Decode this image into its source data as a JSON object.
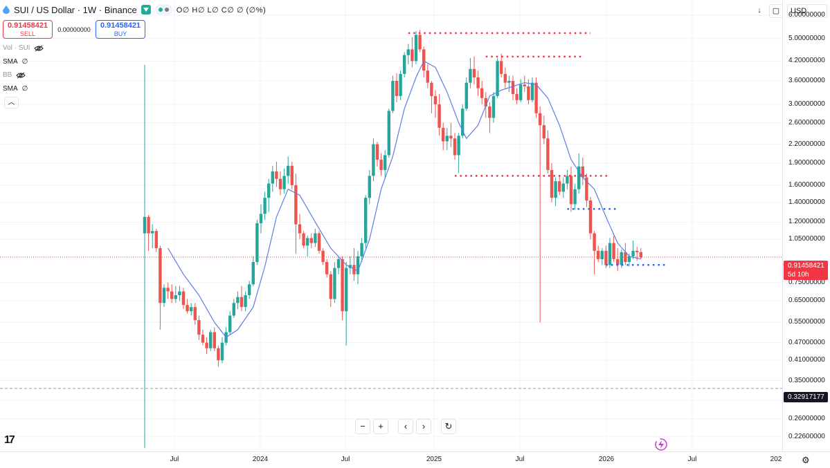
{
  "header": {
    "title": "SUI / US Dollar · 1W · Binance",
    "ohlc": "O∅ H∅ L∅ C∅ ∅ (∅%)"
  },
  "trade": {
    "sell_price": "0.91458421",
    "sell_label": "SELL",
    "spread": "0.00000000",
    "buy_price": "0.91458421",
    "buy_label": "BUY"
  },
  "indicators": [
    {
      "name": "Vol · SUI",
      "value": ""
    },
    {
      "name": "SMA",
      "value": "∅"
    },
    {
      "name": "BB",
      "value": ""
    },
    {
      "name": "SMA",
      "value": "∅"
    }
  ],
  "toolbar": {
    "currency": "USD",
    "arrow_icon": "down-arrow-icon",
    "select_icon": "square-select-icon"
  },
  "price_scale": {
    "labels": [
      "6.00000000",
      "5.00000000",
      "4.20000000",
      "3.60000000",
      "3.00000000",
      "2.60000000",
      "2.20000000",
      "1.90000000",
      "1.60000000",
      "1.40000000",
      "1.20000000",
      "1.05000000",
      "0.75000000",
      "0.65000000",
      "0.55000000",
      "0.47000000",
      "0.41000000",
      "0.35000000",
      "0.30000000",
      "0.26000000",
      "0.22600000"
    ],
    "current_price": "0.91458421",
    "countdown": "5d 10h",
    "crosshair_price": "0.32917177"
  },
  "time_axis": {
    "labels": [
      "Jul",
      "2024",
      "Jul",
      "2025",
      "Jul",
      "2026",
      "Jul",
      "202"
    ]
  },
  "nav": {
    "zoom_out": "−",
    "zoom_in": "+",
    "scroll_left": "‹",
    "scroll_right": "›",
    "reset": "↻"
  },
  "logo": "17",
  "colors": {
    "up": "#26a69a",
    "down": "#ef5350",
    "sma": "#5b7ce8",
    "sell": "#f23645",
    "buy": "#2962ff",
    "resistance": "#f23645",
    "support": "#2962ff"
  },
  "chart_data": {
    "type": "candlestick",
    "scale": "log",
    "ylim": [
      0.205,
      6.4
    ],
    "x_axis": [
      "Jul",
      "2024",
      "Jul",
      "2025",
      "Jul",
      "2026",
      "Jul",
      "202"
    ],
    "current_price": 0.91458421,
    "crosshair_price": 0.32917177,
    "weeks": [
      {
        "o": 1.1,
        "h": 4.08,
        "l": 0.207,
        "c": 1.25
      },
      {
        "o": 1.25,
        "h": 1.27,
        "l": 0.96,
        "c": 1.1
      },
      {
        "o": 1.1,
        "h": 1.18,
        "l": 0.98,
        "c": 1.12
      },
      {
        "o": 1.12,
        "h": 1.14,
        "l": 0.95,
        "c": 0.98
      },
      {
        "o": 0.98,
        "h": 1.0,
        "l": 0.52,
        "c": 0.64
      },
      {
        "o": 0.64,
        "h": 0.74,
        "l": 0.62,
        "c": 0.72
      },
      {
        "o": 0.72,
        "h": 0.75,
        "l": 0.66,
        "c": 0.7
      },
      {
        "o": 0.7,
        "h": 0.74,
        "l": 0.64,
        "c": 0.66
      },
      {
        "o": 0.66,
        "h": 0.73,
        "l": 0.64,
        "c": 0.68
      },
      {
        "o": 0.68,
        "h": 0.73,
        "l": 0.65,
        "c": 0.7
      },
      {
        "o": 0.7,
        "h": 0.72,
        "l": 0.61,
        "c": 0.63
      },
      {
        "o": 0.63,
        "h": 0.66,
        "l": 0.59,
        "c": 0.6
      },
      {
        "o": 0.6,
        "h": 0.64,
        "l": 0.58,
        "c": 0.62
      },
      {
        "o": 0.62,
        "h": 0.64,
        "l": 0.54,
        "c": 0.56
      },
      {
        "o": 0.56,
        "h": 0.58,
        "l": 0.48,
        "c": 0.5
      },
      {
        "o": 0.5,
        "h": 0.52,
        "l": 0.46,
        "c": 0.47
      },
      {
        "o": 0.47,
        "h": 0.49,
        "l": 0.43,
        "c": 0.45
      },
      {
        "o": 0.45,
        "h": 0.52,
        "l": 0.44,
        "c": 0.51
      },
      {
        "o": 0.51,
        "h": 0.53,
        "l": 0.44,
        "c": 0.45
      },
      {
        "o": 0.45,
        "h": 0.46,
        "l": 0.39,
        "c": 0.41
      },
      {
        "o": 0.41,
        "h": 0.49,
        "l": 0.4,
        "c": 0.47
      },
      {
        "o": 0.47,
        "h": 0.53,
        "l": 0.46,
        "c": 0.51
      },
      {
        "o": 0.51,
        "h": 0.6,
        "l": 0.5,
        "c": 0.58
      },
      {
        "o": 0.58,
        "h": 0.66,
        "l": 0.57,
        "c": 0.64
      },
      {
        "o": 0.64,
        "h": 0.7,
        "l": 0.61,
        "c": 0.67
      },
      {
        "o": 0.67,
        "h": 0.73,
        "l": 0.6,
        "c": 0.62
      },
      {
        "o": 0.62,
        "h": 0.7,
        "l": 0.6,
        "c": 0.68
      },
      {
        "o": 0.68,
        "h": 0.76,
        "l": 0.66,
        "c": 0.74
      },
      {
        "o": 0.74,
        "h": 0.92,
        "l": 0.73,
        "c": 0.88
      },
      {
        "o": 0.88,
        "h": 1.22,
        "l": 0.86,
        "c": 1.19
      },
      {
        "o": 1.19,
        "h": 1.38,
        "l": 1.1,
        "c": 1.28
      },
      {
        "o": 1.28,
        "h": 1.52,
        "l": 1.22,
        "c": 1.45
      },
      {
        "o": 1.45,
        "h": 1.68,
        "l": 1.3,
        "c": 1.62
      },
      {
        "o": 1.62,
        "h": 1.86,
        "l": 1.52,
        "c": 1.78
      },
      {
        "o": 1.78,
        "h": 1.92,
        "l": 1.58,
        "c": 1.68
      },
      {
        "o": 1.68,
        "h": 1.78,
        "l": 1.48,
        "c": 1.55
      },
      {
        "o": 1.55,
        "h": 1.82,
        "l": 1.5,
        "c": 1.72
      },
      {
        "o": 1.72,
        "h": 2.0,
        "l": 1.62,
        "c": 1.86
      },
      {
        "o": 1.86,
        "h": 1.92,
        "l": 1.55,
        "c": 1.6
      },
      {
        "o": 1.6,
        "h": 1.75,
        "l": 0.94,
        "c": 1.18
      },
      {
        "o": 1.18,
        "h": 1.28,
        "l": 1.05,
        "c": 1.1
      },
      {
        "o": 1.1,
        "h": 1.12,
        "l": 0.98,
        "c": 1.0
      },
      {
        "o": 1.0,
        "h": 1.08,
        "l": 0.92,
        "c": 1.06
      },
      {
        "o": 1.06,
        "h": 1.1,
        "l": 0.98,
        "c": 1.02
      },
      {
        "o": 1.02,
        "h": 1.14,
        "l": 0.99,
        "c": 1.1
      },
      {
        "o": 1.1,
        "h": 1.12,
        "l": 0.94,
        "c": 0.96
      },
      {
        "o": 0.96,
        "h": 0.98,
        "l": 0.86,
        "c": 0.88
      },
      {
        "o": 0.88,
        "h": 0.9,
        "l": 0.78,
        "c": 0.8
      },
      {
        "o": 0.8,
        "h": 0.82,
        "l": 0.62,
        "c": 0.66
      },
      {
        "o": 0.66,
        "h": 0.88,
        "l": 0.64,
        "c": 0.84
      },
      {
        "o": 0.84,
        "h": 0.92,
        "l": 0.8,
        "c": 0.9
      },
      {
        "o": 0.9,
        "h": 0.92,
        "l": 0.56,
        "c": 0.6
      },
      {
        "o": 0.6,
        "h": 0.88,
        "l": 0.46,
        "c": 0.84
      },
      {
        "o": 0.84,
        "h": 0.92,
        "l": 0.8,
        "c": 0.86
      },
      {
        "o": 0.86,
        "h": 0.98,
        "l": 0.76,
        "c": 0.8
      },
      {
        "o": 0.8,
        "h": 0.96,
        "l": 0.74,
        "c": 0.92
      },
      {
        "o": 0.92,
        "h": 1.06,
        "l": 0.88,
        "c": 1.02
      },
      {
        "o": 1.02,
        "h": 1.48,
        "l": 0.98,
        "c": 1.45
      },
      {
        "o": 1.45,
        "h": 1.8,
        "l": 1.38,
        "c": 1.72
      },
      {
        "o": 1.72,
        "h": 2.3,
        "l": 1.65,
        "c": 2.2
      },
      {
        "o": 2.2,
        "h": 2.24,
        "l": 1.85,
        "c": 1.95
      },
      {
        "o": 1.95,
        "h": 2.05,
        "l": 1.72,
        "c": 1.8
      },
      {
        "o": 1.8,
        "h": 2.1,
        "l": 1.7,
        "c": 2.02
      },
      {
        "o": 2.02,
        "h": 2.9,
        "l": 1.98,
        "c": 2.85
      },
      {
        "o": 2.85,
        "h": 3.75,
        "l": 2.8,
        "c": 3.6
      },
      {
        "o": 3.6,
        "h": 3.82,
        "l": 3.05,
        "c": 3.2
      },
      {
        "o": 3.2,
        "h": 3.9,
        "l": 3.1,
        "c": 3.8
      },
      {
        "o": 3.8,
        "h": 4.5,
        "l": 3.7,
        "c": 4.4
      },
      {
        "o": 4.4,
        "h": 4.8,
        "l": 4.1,
        "c": 4.6
      },
      {
        "o": 4.6,
        "h": 5.05,
        "l": 4.0,
        "c": 4.2
      },
      {
        "o": 4.2,
        "h": 5.3,
        "l": 4.1,
        "c": 5.15
      },
      {
        "o": 5.15,
        "h": 5.35,
        "l": 4.5,
        "c": 4.6
      },
      {
        "o": 4.6,
        "h": 4.7,
        "l": 3.7,
        "c": 3.9
      },
      {
        "o": 3.9,
        "h": 4.1,
        "l": 3.4,
        "c": 3.55
      },
      {
        "o": 3.55,
        "h": 3.6,
        "l": 2.8,
        "c": 3.2
      },
      {
        "o": 3.2,
        "h": 3.35,
        "l": 2.7,
        "c": 3.0
      },
      {
        "o": 3.0,
        "h": 3.25,
        "l": 2.35,
        "c": 2.5
      },
      {
        "o": 2.5,
        "h": 2.6,
        "l": 2.1,
        "c": 2.25
      },
      {
        "o": 2.25,
        "h": 2.5,
        "l": 2.1,
        "c": 2.35
      },
      {
        "o": 2.35,
        "h": 2.6,
        "l": 2.15,
        "c": 2.3
      },
      {
        "o": 2.3,
        "h": 2.4,
        "l": 1.95,
        "c": 2.02
      },
      {
        "o": 2.02,
        "h": 2.4,
        "l": 1.76,
        "c": 2.35
      },
      {
        "o": 2.35,
        "h": 3.0,
        "l": 2.3,
        "c": 2.9
      },
      {
        "o": 2.9,
        "h": 3.7,
        "l": 2.85,
        "c": 3.55
      },
      {
        "o": 3.55,
        "h": 4.3,
        "l": 3.4,
        "c": 3.95
      },
      {
        "o": 3.95,
        "h": 4.35,
        "l": 3.5,
        "c": 3.7
      },
      {
        "o": 3.7,
        "h": 3.9,
        "l": 3.2,
        "c": 3.4
      },
      {
        "o": 3.4,
        "h": 3.6,
        "l": 3.0,
        "c": 3.15
      },
      {
        "o": 3.15,
        "h": 3.3,
        "l": 2.7,
        "c": 2.95
      },
      {
        "o": 2.95,
        "h": 3.05,
        "l": 2.4,
        "c": 2.7
      },
      {
        "o": 2.7,
        "h": 3.3,
        "l": 2.6,
        "c": 3.2
      },
      {
        "o": 3.2,
        "h": 4.3,
        "l": 3.15,
        "c": 4.2
      },
      {
        "o": 4.2,
        "h": 4.45,
        "l": 3.7,
        "c": 3.8
      },
      {
        "o": 3.8,
        "h": 4.0,
        "l": 3.4,
        "c": 3.55
      },
      {
        "o": 3.55,
        "h": 3.75,
        "l": 3.3,
        "c": 3.6
      },
      {
        "o": 3.6,
        "h": 3.75,
        "l": 3.1,
        "c": 3.25
      },
      {
        "o": 3.25,
        "h": 3.4,
        "l": 3.0,
        "c": 3.1
      },
      {
        "o": 3.1,
        "h": 3.65,
        "l": 3.05,
        "c": 3.5
      },
      {
        "o": 3.5,
        "h": 3.75,
        "l": 3.3,
        "c": 3.45
      },
      {
        "o": 3.45,
        "h": 3.65,
        "l": 3.0,
        "c": 3.1
      },
      {
        "o": 3.1,
        "h": 3.7,
        "l": 3.05,
        "c": 3.55
      },
      {
        "o": 3.55,
        "h": 3.7,
        "l": 2.7,
        "c": 2.8
      },
      {
        "o": 2.8,
        "h": 2.95,
        "l": 0.55,
        "c": 2.55
      },
      {
        "o": 2.55,
        "h": 2.75,
        "l": 2.2,
        "c": 2.3
      },
      {
        "o": 2.3,
        "h": 2.45,
        "l": 1.75,
        "c": 1.8
      },
      {
        "o": 1.8,
        "h": 1.9,
        "l": 1.4,
        "c": 1.45
      },
      {
        "o": 1.45,
        "h": 1.7,
        "l": 1.36,
        "c": 1.65
      },
      {
        "o": 1.65,
        "h": 1.72,
        "l": 1.48,
        "c": 1.52
      },
      {
        "o": 1.52,
        "h": 1.7,
        "l": 1.45,
        "c": 1.62
      },
      {
        "o": 1.62,
        "h": 1.8,
        "l": 1.55,
        "c": 1.72
      },
      {
        "o": 1.72,
        "h": 1.85,
        "l": 1.3,
        "c": 1.38
      },
      {
        "o": 1.38,
        "h": 1.62,
        "l": 1.32,
        "c": 1.55
      },
      {
        "o": 1.55,
        "h": 2.05,
        "l": 1.5,
        "c": 1.85
      },
      {
        "o": 1.85,
        "h": 1.98,
        "l": 1.6,
        "c": 1.7
      },
      {
        "o": 1.7,
        "h": 1.75,
        "l": 1.35,
        "c": 1.42
      },
      {
        "o": 1.42,
        "h": 1.46,
        "l": 1.05,
        "c": 1.1
      },
      {
        "o": 1.1,
        "h": 1.12,
        "l": 0.8,
        "c": 0.96
      },
      {
        "o": 0.96,
        "h": 1.0,
        "l": 0.88,
        "c": 0.9
      },
      {
        "o": 0.9,
        "h": 0.98,
        "l": 0.86,
        "c": 0.96
      },
      {
        "o": 0.96,
        "h": 1.0,
        "l": 0.84,
        "c": 0.86
      },
      {
        "o": 0.86,
        "h": 1.06,
        "l": 0.84,
        "c": 1.02
      },
      {
        "o": 1.02,
        "h": 1.08,
        "l": 0.88,
        "c": 0.9
      },
      {
        "o": 0.9,
        "h": 0.98,
        "l": 0.82,
        "c": 0.86
      },
      {
        "o": 0.86,
        "h": 0.97,
        "l": 0.84,
        "c": 0.95
      },
      {
        "o": 0.95,
        "h": 1.02,
        "l": 0.86,
        "c": 0.88
      },
      {
        "o": 0.88,
        "h": 0.94,
        "l": 0.85,
        "c": 0.92
      },
      {
        "o": 0.92,
        "h": 1.04,
        "l": 0.9,
        "c": 0.96
      },
      {
        "o": 0.96,
        "h": 0.99,
        "l": 0.89,
        "c": 0.95
      },
      {
        "o": 0.95,
        "h": 0.98,
        "l": 0.9,
        "c": 0.91
      }
    ],
    "sma": [
      {
        "i": 6,
        "v": 0.98
      },
      {
        "i": 10,
        "v": 0.8
      },
      {
        "i": 14,
        "v": 0.68
      },
      {
        "i": 18,
        "v": 0.55
      },
      {
        "i": 21,
        "v": 0.49
      },
      {
        "i": 24,
        "v": 0.52
      },
      {
        "i": 28,
        "v": 0.62
      },
      {
        "i": 31,
        "v": 0.85
      },
      {
        "i": 34,
        "v": 1.25
      },
      {
        "i": 37,
        "v": 1.55
      },
      {
        "i": 40,
        "v": 1.48
      },
      {
        "i": 44,
        "v": 1.2
      },
      {
        "i": 48,
        "v": 0.98
      },
      {
        "i": 52,
        "v": 0.86
      },
      {
        "i": 55,
        "v": 0.82
      },
      {
        "i": 58,
        "v": 1.05
      },
      {
        "i": 61,
        "v": 1.55
      },
      {
        "i": 64,
        "v": 2.0
      },
      {
        "i": 67,
        "v": 2.9
      },
      {
        "i": 70,
        "v": 3.7
      },
      {
        "i": 72,
        "v": 4.2
      },
      {
        "i": 75,
        "v": 4.0
      },
      {
        "i": 78,
        "v": 3.3
      },
      {
        "i": 81,
        "v": 2.6
      },
      {
        "i": 83,
        "v": 2.3
      },
      {
        "i": 86,
        "v": 2.55
      },
      {
        "i": 89,
        "v": 3.2
      },
      {
        "i": 92,
        "v": 3.35
      },
      {
        "i": 95,
        "v": 3.45
      },
      {
        "i": 98,
        "v": 3.55
      },
      {
        "i": 101,
        "v": 3.5
      },
      {
        "i": 104,
        "v": 3.15
      },
      {
        "i": 107,
        "v": 2.55
      },
      {
        "i": 110,
        "v": 1.95
      },
      {
        "i": 113,
        "v": 1.7
      },
      {
        "i": 116,
        "v": 1.55
      },
      {
        "i": 119,
        "v": 1.25
      },
      {
        "i": 122,
        "v": 1.02
      },
      {
        "i": 125,
        "v": 0.92
      },
      {
        "i": 128,
        "v": 0.9
      }
    ],
    "levels": [
      {
        "price": 5.22,
        "from_week": 68,
        "to_week": 115,
        "kind": "resistance"
      },
      {
        "price": 4.35,
        "from_week": 88,
        "to_week": 113,
        "kind": "resistance"
      },
      {
        "price": 1.72,
        "from_week": 80,
        "to_week": 120,
        "kind": "resistance"
      },
      {
        "price": 1.33,
        "from_week": 109,
        "to_week": 122,
        "kind": "support"
      },
      {
        "price": 0.86,
        "from_week": 119,
        "to_week": 135,
        "kind": "support"
      }
    ]
  }
}
